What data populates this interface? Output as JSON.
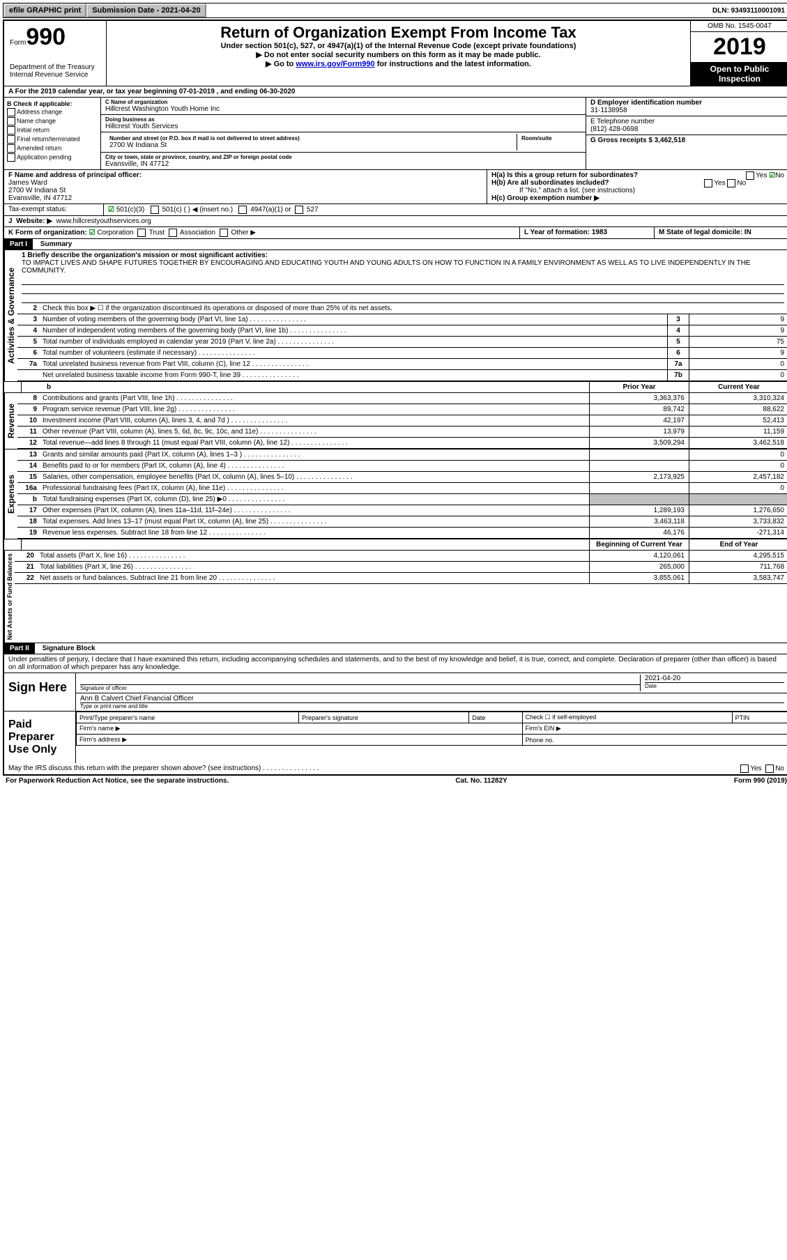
{
  "topbar": {
    "efile": "efile GRAPHIC print",
    "submission_label": "Submission Date - 2021-04-20",
    "dln_label": "DLN: 93493110001091"
  },
  "header": {
    "form_label": "Form",
    "form_number": "990",
    "dept": "Department of the Treasury\nInternal Revenue Service",
    "title": "Return of Organization Exempt From Income Tax",
    "subtitle": "Under section 501(c), 527, or 4947(a)(1) of the Internal Revenue Code (except private foundations)",
    "note1": "▶ Do not enter social security numbers on this form as it may be made public.",
    "note2_prefix": "▶ Go to ",
    "note2_link": "www.irs.gov/Form990",
    "note2_suffix": " for instructions and the latest information.",
    "omb": "OMB No. 1545-0047",
    "year": "2019",
    "inspection": "Open to Public Inspection"
  },
  "rowA": "A For the 2019 calendar year, or tax year beginning 07-01-2019   , and ending 06-30-2020",
  "colB": {
    "title": "B Check if applicable:",
    "items": [
      "Address change",
      "Name change",
      "Initial return",
      "Final return/terminated",
      "Amended return",
      "Application pending"
    ]
  },
  "colC": {
    "name_label": "C Name of organization",
    "name": "Hillcrest Washington Youth Home Inc",
    "dba_label": "Doing business as",
    "dba": "Hillcrest Youth Services",
    "street_label": "Number and street (or P.O. box if mail is not delivered to street address)",
    "room_label": "Room/suite",
    "street": "2700 W Indiana St",
    "city_label": "City or town, state or province, country, and ZIP or foreign postal code",
    "city": "Evansville, IN  47712"
  },
  "colD": {
    "ein_label": "D Employer identification number",
    "ein": "31-1138958",
    "phone_label": "E Telephone number",
    "phone": "(812) 428-0698",
    "gross_label": "G Gross receipts $ 3,462,518"
  },
  "rowF": {
    "label": "F  Name and address of principal officer:",
    "name": "James Ward",
    "addr1": "2700 W Indiana St",
    "addr2": "Evansville, IN  47712"
  },
  "rowH": {
    "a": "H(a)  Is this a group return for subordinates?",
    "b": "H(b)  Are all subordinates included?",
    "b_note": "If \"No,\" attach a list. (see instructions)",
    "c": "H(c)  Group exemption number ▶"
  },
  "rowI": {
    "label": "Tax-exempt status:",
    "opt1": "501(c)(3)",
    "opt2": "501(c) (  ) ◀ (insert no.)",
    "opt3": "4947(a)(1) or",
    "opt4": "527"
  },
  "rowJ": {
    "label": "Website: ▶",
    "url": "www.hillcrestyouthservices.org"
  },
  "rowK": {
    "label": "K Form of organization:",
    "opts": [
      "Corporation",
      "Trust",
      "Association",
      "Other ▶"
    ]
  },
  "rowL": "L Year of formation: 1983",
  "rowM": "M State of legal domicile: IN",
  "part1": {
    "header": "Part I",
    "title": "Summary",
    "line1_label": "1  Briefly describe the organization's mission or most significant activities:",
    "mission": "TO IMPACT LIVES AND SHAPE FUTURES TOGETHER BY ENCOURAGING AND EDUCATING YOUTH AND YOUNG ADULTS ON HOW TO FUNCTION IN A FAMILY ENVIRONMENT AS WELL AS TO LIVE INDEPENDENTLY IN THE COMMUNITY.",
    "line2": "Check this box ▶ ☐  if the organization discontinued its operations or disposed of more than 25% of its net assets.",
    "governance_label": "Activities & Governance",
    "revenue_label": "Revenue",
    "expenses_label": "Expenses",
    "netassets_label": "Net Assets or Fund Balances",
    "lines_gov": [
      {
        "n": "3",
        "d": "Number of voting members of the governing body (Part VI, line 1a)",
        "box": "3",
        "v": "9"
      },
      {
        "n": "4",
        "d": "Number of independent voting members of the governing body (Part VI, line 1b)",
        "box": "4",
        "v": "9"
      },
      {
        "n": "5",
        "d": "Total number of individuals employed in calendar year 2019 (Part V, line 2a)",
        "box": "5",
        "v": "75"
      },
      {
        "n": "6",
        "d": "Total number of volunteers (estimate if necessary)",
        "box": "6",
        "v": "9"
      },
      {
        "n": "7a",
        "d": "Total unrelated business revenue from Part VIII, column (C), line 12",
        "box": "7a",
        "v": "0"
      },
      {
        "n": "",
        "d": "Net unrelated business taxable income from Form 990-T, line 39",
        "box": "7b",
        "v": "0"
      }
    ],
    "col_prior": "Prior Year",
    "col_current": "Current Year",
    "lines_rev": [
      {
        "n": "8",
        "d": "Contributions and grants (Part VIII, line 1h)",
        "p": "3,363,376",
        "c": "3,310,324"
      },
      {
        "n": "9",
        "d": "Program service revenue (Part VIII, line 2g)",
        "p": "89,742",
        "c": "88,622"
      },
      {
        "n": "10",
        "d": "Investment income (Part VIII, column (A), lines 3, 4, and 7d )",
        "p": "42,197",
        "c": "52,413"
      },
      {
        "n": "11",
        "d": "Other revenue (Part VIII, column (A), lines 5, 6d, 8c, 9c, 10c, and 11e)",
        "p": "13,979",
        "c": "11,159"
      },
      {
        "n": "12",
        "d": "Total revenue—add lines 8 through 11 (must equal Part VIII, column (A), line 12)",
        "p": "3,509,294",
        "c": "3,462,518"
      }
    ],
    "lines_exp": [
      {
        "n": "13",
        "d": "Grants and similar amounts paid (Part IX, column (A), lines 1–3 )",
        "p": "",
        "c": "0"
      },
      {
        "n": "14",
        "d": "Benefits paid to or for members (Part IX, column (A), line 4)",
        "p": "",
        "c": "0"
      },
      {
        "n": "15",
        "d": "Salaries, other compensation, employee benefits (Part IX, column (A), lines 5–10)",
        "p": "2,173,925",
        "c": "2,457,182"
      },
      {
        "n": "16a",
        "d": "Professional fundraising fees (Part IX, column (A), line 11e)",
        "p": "",
        "c": "0"
      },
      {
        "n": "b",
        "d": "Total fundraising expenses (Part IX, column (D), line 25) ▶0",
        "p": "shaded",
        "c": "shaded"
      },
      {
        "n": "17",
        "d": "Other expenses (Part IX, column (A), lines 11a–11d, 11f–24e)",
        "p": "1,289,193",
        "c": "1,276,650"
      },
      {
        "n": "18",
        "d": "Total expenses. Add lines 13–17 (must equal Part IX, column (A), line 25)",
        "p": "3,463,118",
        "c": "3,733,832"
      },
      {
        "n": "19",
        "d": "Revenue less expenses. Subtract line 18 from line 12",
        "p": "46,176",
        "c": "-271,314"
      }
    ],
    "col_begin": "Beginning of Current Year",
    "col_end": "End of Year",
    "lines_net": [
      {
        "n": "20",
        "d": "Total assets (Part X, line 16)",
        "p": "4,120,061",
        "c": "4,295,515"
      },
      {
        "n": "21",
        "d": "Total liabilities (Part X, line 26)",
        "p": "265,000",
        "c": "711,768"
      },
      {
        "n": "22",
        "d": "Net assets or fund balances. Subtract line 21 from line 20",
        "p": "3,855,061",
        "c": "3,583,747"
      }
    ]
  },
  "part2": {
    "header": "Part II",
    "title": "Signature Block",
    "declaration": "Under penalties of perjury, I declare that I have examined this return, including accompanying schedules and statements, and to the best of my knowledge and belief, it is true, correct, and complete. Declaration of preparer (other than officer) is based on all information of which preparer has any knowledge.",
    "sign_here": "Sign Here",
    "sig_officer": "Signature of officer",
    "sig_date": "2021-04-20",
    "date_label": "Date",
    "officer_name": "Ann B Calvert  Chief Financial Officer",
    "type_label": "Type or print name and title",
    "paid_prep": "Paid Preparer Use Only",
    "prep_cols": [
      "Print/Type preparer's name",
      "Preparer's signature",
      "Date",
      "Check ☐ if self-employed",
      "PTIN"
    ],
    "firm_name": "Firm's name   ▶",
    "firm_ein": "Firm's EIN ▶",
    "firm_addr": "Firm's address ▶",
    "phone_no": "Phone no.",
    "discuss": "May the IRS discuss this return with the preparer shown above? (see instructions)"
  },
  "footer": {
    "paperwork": "For Paperwork Reduction Act Notice, see the separate instructions.",
    "cat": "Cat. No. 11282Y",
    "form": "Form 990 (2019)"
  }
}
